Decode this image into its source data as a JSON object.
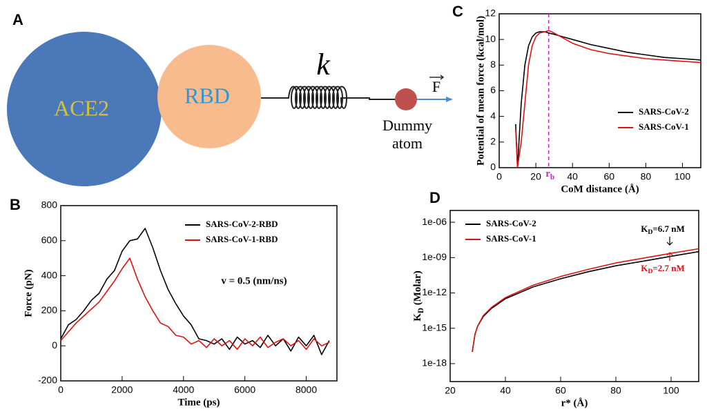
{
  "diagram": {
    "panel": "A",
    "circles": [
      "ACE2",
      "RBD"
    ],
    "spring_label": "k",
    "force_label": "F",
    "dummy_label": [
      "Dummy",
      "atom"
    ]
  },
  "chart_data": [
    {
      "type": "line",
      "panel": "B",
      "xlabel": "Time (ps)",
      "ylabel": "Force (pN)",
      "annotation": "v = 0.5 (nm/ns)",
      "xlim": [
        0,
        9000
      ],
      "ylim": [
        -200,
        800
      ],
      "xticks": [
        0,
        2000,
        4000,
        6000,
        8000
      ],
      "yticks": [
        -200,
        0,
        200,
        400,
        600,
        800
      ],
      "legend": "upper right",
      "log_y": false,
      "x": [
        0,
        250,
        500,
        750,
        1000,
        1250,
        1500,
        1750,
        2000,
        2250,
        2500,
        2750,
        3000,
        3250,
        3500,
        3750,
        4000,
        4250,
        4500,
        4750,
        5000,
        5250,
        5500,
        5750,
        6000,
        6250,
        6500,
        6750,
        7000,
        7250,
        7500,
        7750,
        8000,
        8250,
        8500,
        8750
      ],
      "series": [
        {
          "name": "SARS-CoV-2-RBD",
          "color": "#000000",
          "values": [
            40,
            120,
            150,
            200,
            260,
            300,
            380,
            430,
            540,
            600,
            610,
            670,
            560,
            430,
            320,
            240,
            170,
            120,
            40,
            30,
            10,
            40,
            -20,
            50,
            10,
            30,
            -10,
            60,
            0,
            40,
            -30,
            50,
            0,
            60,
            -50,
            30
          ]
        },
        {
          "name": "SARS-CoV-1-RBD",
          "color": "#e01010",
          "values": [
            30,
            80,
            130,
            170,
            210,
            250,
            310,
            370,
            440,
            500,
            380,
            280,
            200,
            130,
            110,
            60,
            50,
            10,
            30,
            -10,
            40,
            0,
            30,
            -20,
            40,
            0,
            50,
            -10,
            20,
            40,
            0,
            30,
            -20,
            40,
            0,
            20
          ]
        }
      ]
    },
    {
      "type": "line",
      "panel": "C",
      "xlabel": "CoM distance (Å)",
      "ylabel": "Potential of mean force (kcal/mol)",
      "xlim": [
        0,
        110
      ],
      "ylim": [
        0,
        12
      ],
      "xticks": [
        0,
        20,
        40,
        60,
        80,
        100
      ],
      "yticks": [
        0,
        2,
        4,
        6,
        8,
        10,
        12
      ],
      "legend": "lower right",
      "log_y": false,
      "marker": {
        "x": 27,
        "label": "r",
        "sub": "b",
        "color": "#d020d0"
      },
      "x": [
        9,
        10,
        12,
        14,
        16,
        18,
        20,
        22,
        25,
        27,
        30,
        35,
        40,
        50,
        60,
        70,
        80,
        90,
        100,
        110
      ],
      "series": [
        {
          "name": "SARS-CoV-2",
          "color": "#000000",
          "values": [
            3.4,
            0,
            5,
            8,
            9.5,
            10.2,
            10.5,
            10.6,
            10.6,
            10.5,
            10.4,
            10.2,
            10.0,
            9.6,
            9.3,
            9.0,
            8.8,
            8.6,
            8.5,
            8.4
          ]
        },
        {
          "name": "SARS-CoV-1",
          "color": "#e01010",
          "values": [
            3,
            0,
            2,
            5,
            8,
            9.5,
            10.2,
            10.5,
            10.6,
            10.7,
            10.5,
            10.1,
            9.7,
            9.2,
            8.9,
            8.7,
            8.5,
            8.4,
            8.3,
            8.2
          ]
        }
      ]
    },
    {
      "type": "line",
      "panel": "D",
      "xlabel": "r* (Å)",
      "ylabel": [
        "K",
        "D",
        " (Molar)"
      ],
      "xlim": [
        20,
        110
      ],
      "ylim": [
        3e-20,
        1e-05
      ],
      "xticks": [
        20,
        40,
        60,
        80,
        100
      ],
      "yticks": [
        {
          "value": 1e-18,
          "label": "1e-18"
        },
        {
          "value": 1e-15,
          "label": "1e-15"
        },
        {
          "value": 1e-12,
          "label": "1e-12"
        },
        {
          "value": 1e-09,
          "label": "1e-09"
        },
        {
          "value": 1e-06,
          "label": "1e-06"
        }
      ],
      "legend": "upper left",
      "log_y": true,
      "annotations": [
        {
          "text": "K",
          "sub": "D",
          "rest": "=6.7 nM",
          "color": "#000000"
        },
        {
          "text": "K",
          "sub": "D",
          "rest": "=2.7 nM",
          "color": "#e01010"
        }
      ],
      "x": [
        28,
        29,
        30,
        32,
        35,
        40,
        50,
        60,
        70,
        80,
        90,
        100,
        110
      ],
      "series": [
        {
          "name": "SARS-CoV-2",
          "color": "#000000",
          "values": [
            1e-17,
            3.2e-16,
            1.6e-15,
            1e-14,
            5e-14,
            3.2e-13,
            3.2e-12,
            1.6e-11,
            6.3e-11,
            2e-10,
            5e-10,
            1.3e-09,
            3.2e-09
          ]
        },
        {
          "name": "SARS-CoV-1",
          "color": "#e01010",
          "values": [
            1e-17,
            3.2e-16,
            1.6e-15,
            1.2e-14,
            6e-14,
            4e-13,
            4.5e-12,
            2.5e-11,
            1e-10,
            3.5e-10,
            9e-10,
            2.3e-09,
            5.6e-09
          ]
        }
      ]
    }
  ]
}
